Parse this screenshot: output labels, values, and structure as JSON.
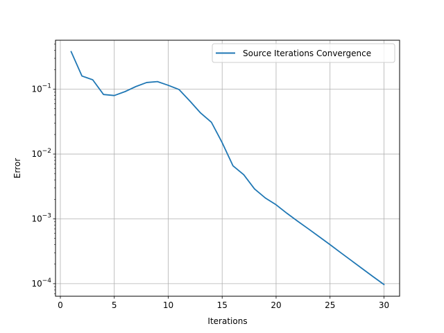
{
  "chart_data": {
    "type": "line",
    "title": "",
    "xlabel": "Iterations",
    "ylabel": "Error",
    "xlim": [
      -0.45,
      31.45
    ],
    "ylim": [
      6.4e-05,
      0.57
    ],
    "yscale": "log",
    "grid": true,
    "legend_position": "top-right",
    "x_ticks": [
      0,
      5,
      10,
      15,
      20,
      25,
      30
    ],
    "y_ticks": [
      {
        "value": 0.0001,
        "base": "10",
        "exp": "−4"
      },
      {
        "value": 0.001,
        "base": "10",
        "exp": "−3"
      },
      {
        "value": 0.01,
        "base": "10",
        "exp": "−2"
      },
      {
        "value": 0.1,
        "base": "10",
        "exp": "−1"
      }
    ],
    "series": [
      {
        "name": "Source Iterations Convergence",
        "color": "#1f77b4",
        "x": [
          1,
          2,
          3,
          4,
          5,
          6,
          7,
          8,
          9,
          10,
          11,
          12,
          13,
          14,
          15,
          16,
          17,
          18,
          19,
          20,
          21,
          22,
          23,
          24,
          25,
          26,
          27,
          28,
          29,
          30
        ],
        "y": [
          0.38,
          0.16,
          0.14,
          0.083,
          0.08,
          0.092,
          0.11,
          0.127,
          0.131,
          0.115,
          0.099,
          0.066,
          0.043,
          0.031,
          0.015,
          0.0066,
          0.0048,
          0.0029,
          0.0021,
          0.00165,
          0.00122,
          0.00092,
          0.0007,
          0.00053,
          0.0004,
          0.0003,
          0.000226,
          0.00017,
          0.000128,
          9.7e-05
        ]
      }
    ]
  }
}
